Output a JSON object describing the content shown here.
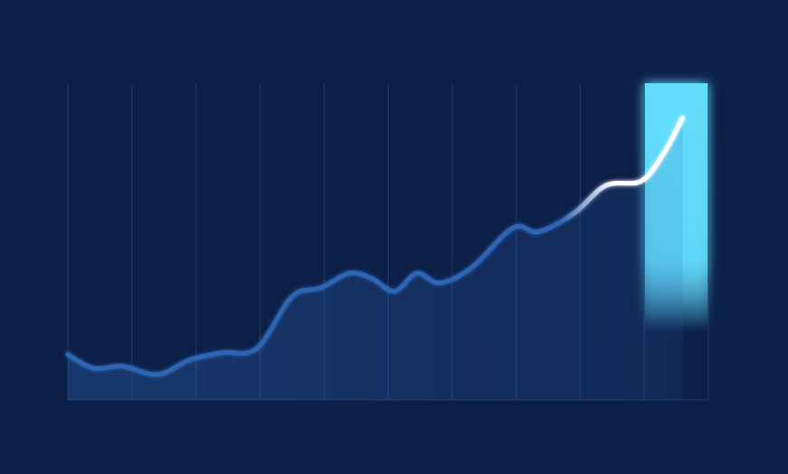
{
  "chart_data": {
    "type": "area",
    "x": [
      0,
      0.4,
      0.85,
      1.4,
      1.9,
      2.4,
      2.95,
      3.5,
      3.95,
      4.4,
      4.75,
      5.1,
      5.45,
      5.8,
      6.3,
      6.95,
      7.35,
      7.9,
      8.4,
      8.95,
      9.3,
      9.6
    ],
    "values": [
      14.3,
      10,
      10.6,
      8,
      12.6,
      14.9,
      16.3,
      32.6,
      35.4,
      40,
      38.3,
      34.3,
      40,
      36.9,
      41.7,
      54.3,
      53.1,
      58.9,
      67.7,
      69.1,
      77.7,
      89.1
    ],
    "color": "#2f65b3",
    "highlight_color": "#62dcfb",
    "highlight_line_color": "#ffffff",
    "highlight_xrange": [
      9,
      10
    ],
    "xlim": [
      0,
      10
    ],
    "xticks": [
      0,
      1,
      2,
      3,
      4,
      5,
      6,
      7,
      8,
      9,
      10
    ],
    "ylim": [
      0,
      100
    ],
    "grid": true
  }
}
